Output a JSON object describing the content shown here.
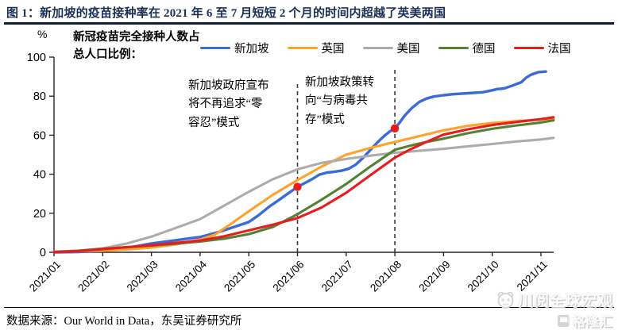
{
  "title": "图 1：新加坡的疫苗接种率在 2021 年 6 至 7 月短短 2 个月的时间内超越了英美两国",
  "legend_header": "新冠疫苗完全接种人数占\n总人口比例：",
  "y_unit": "%",
  "annotations": [
    {
      "text": "新加坡政府宣布\n将不再追求“零\n容忍”模式"
    },
    {
      "text": "新加坡政策转\n向“与病毒共\n存”模式"
    }
  ],
  "source": {
    "text": "数据来源：Our World in Data，东吴证券研究所"
  },
  "watermark": {
    "brand": "川阅全球宏观",
    "logo_text": "格隆汇",
    "icons": [
      "panda-icon",
      "gelonghui-icon"
    ]
  },
  "chart_data": {
    "type": "line",
    "title": "新冠疫苗完全接种人数占总人口比例",
    "xlabel": "",
    "ylabel": "%",
    "ylim": [
      0,
      100
    ],
    "yticks": [
      0,
      20,
      40,
      60,
      80,
      100
    ],
    "x_tick_labels": [
      "2021/01",
      "2021/02",
      "2021/03",
      "2021/04",
      "2021/05",
      "2021/06",
      "2021/07",
      "2021/08",
      "2021/09",
      "2021/10",
      "2021/11"
    ],
    "x_note": "series x values are month indices, 0 = 2021/01, 10 = 2021/11",
    "grid": false,
    "legend_position": "top",
    "series": [
      {
        "name": "新加坡",
        "color": "#3A6BD8",
        "points": [
          [
            0,
            0
          ],
          [
            0.5,
            0.2
          ],
          [
            1,
            0.7
          ],
          [
            1.5,
            2.2
          ],
          [
            2,
            4.5
          ],
          [
            2.4,
            5.8
          ],
          [
            2.8,
            7.2
          ],
          [
            3,
            7.8
          ],
          [
            3.4,
            10.5
          ],
          [
            3.7,
            13
          ],
          [
            4,
            15.5
          ],
          [
            4.2,
            19
          ],
          [
            4.4,
            23
          ],
          [
            4.6,
            26.5
          ],
          [
            4.8,
            30
          ],
          [
            5,
            33.5
          ],
          [
            5.15,
            35.5
          ],
          [
            5.3,
            37.5
          ],
          [
            5.45,
            39.8
          ],
          [
            5.6,
            40.8
          ],
          [
            5.75,
            41.2
          ],
          [
            5.9,
            41.8
          ],
          [
            6.05,
            42.8
          ],
          [
            6.2,
            45
          ],
          [
            6.35,
            48.5
          ],
          [
            6.5,
            52.5
          ],
          [
            6.65,
            56.5
          ],
          [
            6.8,
            60
          ],
          [
            6.9,
            62
          ],
          [
            7,
            63.5
          ],
          [
            7.1,
            66.5
          ],
          [
            7.2,
            70
          ],
          [
            7.35,
            74
          ],
          [
            7.5,
            77
          ],
          [
            7.65,
            78.8
          ],
          [
            7.8,
            79.8
          ],
          [
            8,
            80.5
          ],
          [
            8.2,
            81
          ],
          [
            8.5,
            81.5
          ],
          [
            8.8,
            82
          ],
          [
            9,
            83
          ],
          [
            9.1,
            83.6
          ],
          [
            9.25,
            84
          ],
          [
            9.4,
            85.3
          ],
          [
            9.5,
            86.2
          ],
          [
            9.6,
            87.2
          ],
          [
            9.7,
            89.5
          ],
          [
            9.8,
            91
          ],
          [
            9.95,
            92.3
          ],
          [
            10.1,
            92.6
          ]
        ]
      },
      {
        "name": "英国",
        "color": "#FFA229",
        "points": [
          [
            0,
            0.4
          ],
          [
            0.5,
            0.6
          ],
          [
            1,
            0.9
          ],
          [
            1.5,
            1.5
          ],
          [
            2,
            2.4
          ],
          [
            2.5,
            4
          ],
          [
            3,
            6.5
          ],
          [
            3.3,
            9
          ],
          [
            3.6,
            14
          ],
          [
            4,
            21
          ],
          [
            4.5,
            29.5
          ],
          [
            5,
            37
          ],
          [
            5.5,
            44
          ],
          [
            6,
            50
          ],
          [
            6.5,
            53.5
          ],
          [
            7,
            56.5
          ],
          [
            7.5,
            59.5
          ],
          [
            8,
            62.5
          ],
          [
            8.5,
            64.8
          ],
          [
            9,
            66.2
          ],
          [
            9.5,
            67.2
          ],
          [
            10,
            68
          ],
          [
            10.26,
            68.5
          ]
        ]
      },
      {
        "name": "美国",
        "color": "#ACACAC",
        "points": [
          [
            0,
            0.3
          ],
          [
            0.5,
            0.8
          ],
          [
            1,
            2
          ],
          [
            1.5,
            4.5
          ],
          [
            2,
            8
          ],
          [
            2.5,
            12.5
          ],
          [
            3,
            17
          ],
          [
            3.5,
            24
          ],
          [
            4,
            31
          ],
          [
            4.5,
            37.5
          ],
          [
            5,
            42.5
          ],
          [
            5.5,
            45.8
          ],
          [
            6,
            47.8
          ],
          [
            6.5,
            49.5
          ],
          [
            7,
            51
          ],
          [
            7.5,
            52
          ],
          [
            8,
            53
          ],
          [
            8.5,
            54.3
          ],
          [
            9,
            55.5
          ],
          [
            9.5,
            56.8
          ],
          [
            10,
            57.8
          ],
          [
            10.26,
            58.6
          ]
        ]
      },
      {
        "name": "德国",
        "color": "#548235",
        "points": [
          [
            0,
            0.2
          ],
          [
            0.5,
            0.8
          ],
          [
            1,
            1.8
          ],
          [
            1.5,
            2.6
          ],
          [
            2,
            3.4
          ],
          [
            2.5,
            4.4
          ],
          [
            3,
            5.5
          ],
          [
            3.5,
            7
          ],
          [
            4,
            9.3
          ],
          [
            4.5,
            13
          ],
          [
            5,
            19.5
          ],
          [
            5.5,
            27
          ],
          [
            6,
            35
          ],
          [
            6.5,
            44
          ],
          [
            7,
            52.5
          ],
          [
            7.3,
            54.5
          ],
          [
            7.6,
            56.3
          ],
          [
            8,
            58.2
          ],
          [
            8.5,
            61
          ],
          [
            9,
            63.3
          ],
          [
            9.5,
            65
          ],
          [
            10,
            66.5
          ],
          [
            10.26,
            67.6
          ]
        ]
      },
      {
        "name": "法国",
        "color": "#E81C1C",
        "points": [
          [
            0,
            0.1
          ],
          [
            0.5,
            0.6
          ],
          [
            1,
            1.6
          ],
          [
            1.5,
            2.6
          ],
          [
            2,
            3.6
          ],
          [
            2.5,
            4.8
          ],
          [
            3,
            6
          ],
          [
            3.5,
            8.2
          ],
          [
            4,
            11.2
          ],
          [
            4.5,
            14.2
          ],
          [
            5,
            17.5
          ],
          [
            5.5,
            23
          ],
          [
            6,
            30.5
          ],
          [
            6.5,
            39.5
          ],
          [
            7,
            48.5
          ],
          [
            7.3,
            52.5
          ],
          [
            7.6,
            56
          ],
          [
            8,
            60.3
          ],
          [
            8.5,
            63
          ],
          [
            9,
            65.2
          ],
          [
            9.5,
            66.8
          ],
          [
            10,
            68.2
          ],
          [
            10.26,
            69.2
          ]
        ]
      }
    ],
    "event_lines": [
      {
        "x": 5,
        "label": "新加坡政府宣布将不再追求“零容忍”模式"
      },
      {
        "x": 7,
        "label": "新加坡政策转向“与病毒共存”模式"
      }
    ],
    "markers": [
      {
        "series": "新加坡",
        "x": 5,
        "y": 33.5,
        "color": "#E81C1C"
      },
      {
        "series": "新加坡",
        "x": 7,
        "y": 63.5,
        "color": "#E81C1C"
      }
    ]
  }
}
